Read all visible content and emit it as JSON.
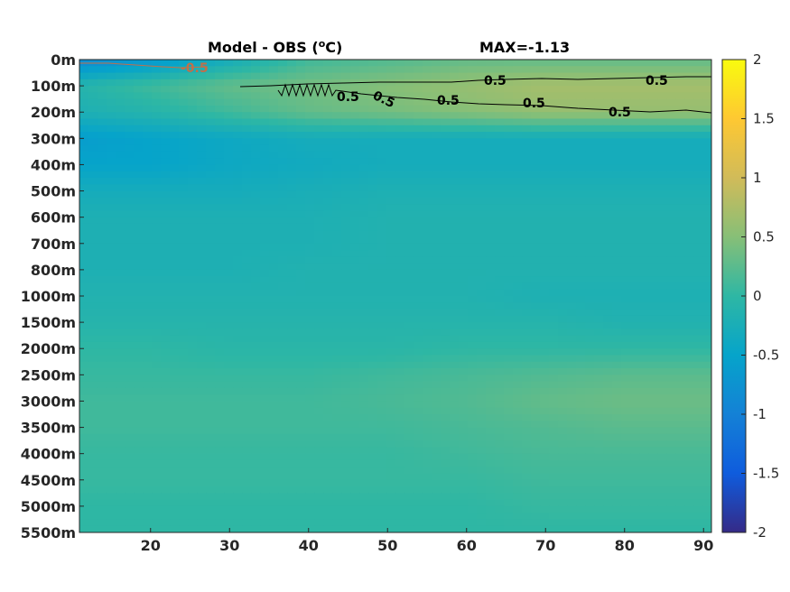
{
  "chart_data": {
    "type": "heatmap",
    "title": "Model - OBS (°C)",
    "title_parts": {
      "prefix": "Model - OBS (",
      "superscript": "o",
      "suffix": "C)"
    },
    "annotation": "MAX=-1.13",
    "xlabel": "",
    "ylabel": "",
    "x_ticks": [
      20,
      30,
      40,
      50,
      60,
      70,
      80,
      90
    ],
    "x_tick_labels": [
      "20",
      "30",
      "40",
      "50",
      "60",
      "70",
      "80",
      "90"
    ],
    "xlim": [
      11,
      91
    ],
    "y_tick_labels": [
      "0m",
      "100m",
      "200m",
      "300m",
      "400m",
      "500m",
      "600m",
      "700m",
      "800m",
      "1000m",
      "1500m",
      "2000m",
      "2500m",
      "3000m",
      "3500m",
      "4000m",
      "4500m",
      "5000m",
      "5500m"
    ],
    "colorbar": {
      "min": -2,
      "max": 2,
      "ticks": [
        2,
        1.5,
        1,
        0.5,
        0,
        -0.5,
        -1,
        -1.5,
        -2
      ],
      "tick_labels": [
        "2",
        "1.5",
        "1",
        "0.5",
        "0",
        "-0.5",
        "-1",
        "-1.5",
        "-2"
      ],
      "colormap": "parula"
    },
    "contour_labels": [
      {
        "text": "0.5",
        "color": "#000000"
      },
      {
        "text": "-0.5",
        "color": "#c0704a"
      }
    ],
    "field": {
      "depth_levels": [
        "0m",
        "100m",
        "200m",
        "300m",
        "400m",
        "500m",
        "600m",
        "700m",
        "800m",
        "1000m",
        "1500m",
        "2000m",
        "2500m",
        "3000m",
        "3500m",
        "4000m",
        "4500m",
        "5000m",
        "5500m"
      ],
      "x": [
        11,
        20,
        30,
        40,
        50,
        60,
        70,
        80,
        91
      ],
      "values": [
        [
          -0.9,
          -0.7,
          -0.3,
          0.1,
          0.2,
          0.3,
          0.3,
          0.3,
          0.3
        ],
        [
          -0.1,
          0.1,
          0.3,
          0.4,
          0.5,
          0.6,
          0.7,
          0.7,
          0.7
        ],
        [
          -0.2,
          -0.1,
          0.1,
          0.3,
          0.4,
          0.5,
          0.6,
          0.6,
          0.6
        ],
        [
          -0.6,
          -0.5,
          -0.4,
          -0.3,
          -0.3,
          -0.3,
          -0.3,
          -0.3,
          -0.3
        ],
        [
          -0.5,
          -0.5,
          -0.4,
          -0.35,
          -0.3,
          -0.3,
          -0.3,
          -0.3,
          -0.3
        ],
        [
          -0.3,
          -0.3,
          -0.3,
          -0.25,
          -0.2,
          -0.2,
          -0.2,
          -0.2,
          -0.2
        ],
        [
          -0.2,
          -0.2,
          -0.2,
          -0.2,
          -0.15,
          -0.15,
          -0.15,
          -0.15,
          -0.15
        ],
        [
          -0.2,
          -0.2,
          -0.2,
          -0.2,
          -0.15,
          -0.15,
          -0.15,
          -0.15,
          -0.15
        ],
        [
          -0.2,
          -0.2,
          -0.2,
          -0.15,
          -0.15,
          -0.15,
          -0.15,
          -0.15,
          -0.15
        ],
        [
          -0.15,
          -0.15,
          -0.15,
          -0.15,
          -0.15,
          -0.15,
          -0.2,
          -0.2,
          -0.2
        ],
        [
          -0.1,
          -0.1,
          -0.1,
          -0.1,
          -0.1,
          -0.1,
          -0.1,
          -0.15,
          -0.15
        ],
        [
          0.0,
          0.0,
          -0.05,
          -0.05,
          -0.05,
          0.0,
          0.0,
          0.0,
          0.0
        ],
        [
          0.05,
          0.05,
          0.05,
          0.05,
          0.1,
          0.15,
          0.2,
          0.25,
          0.25
        ],
        [
          0.1,
          0.1,
          0.1,
          0.1,
          0.15,
          0.2,
          0.3,
          0.35,
          0.35
        ],
        [
          0.1,
          0.1,
          0.1,
          0.1,
          0.1,
          0.15,
          0.2,
          0.25,
          0.25
        ],
        [
          0.05,
          0.05,
          0.05,
          0.05,
          0.05,
          0.1,
          0.15,
          0.15,
          0.15
        ],
        [
          0.05,
          0.05,
          0.05,
          0.05,
          0.05,
          0.05,
          0.1,
          0.1,
          0.1
        ],
        [
          0.0,
          0.0,
          0.0,
          0.0,
          0.0,
          0.0,
          0.05,
          0.05,
          0.05
        ],
        [
          0.0,
          0.0,
          0.0,
          0.0,
          0.0,
          0.0,
          0.0,
          0.0,
          0.0
        ]
      ]
    }
  }
}
